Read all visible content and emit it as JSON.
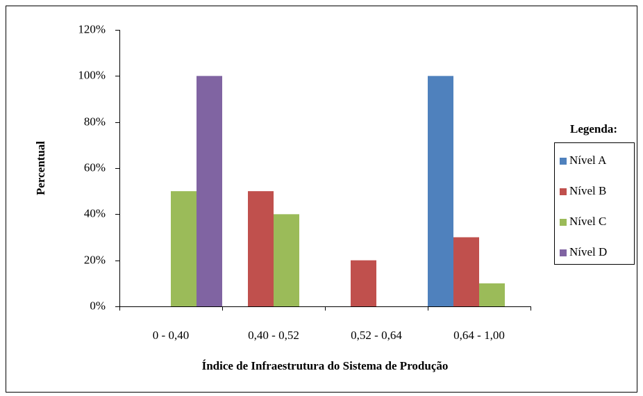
{
  "chart_data": {
    "type": "bar",
    "x_label": "Índice de Infraestrutura do Sistema de Produção",
    "y_label": "Percentual",
    "legend_title": "Legenda:",
    "legend_position": "right",
    "categories": [
      "0 - 0,40",
      "0,40 - 0,52",
      "0,52 - 0,64",
      "0,64 - 1,00"
    ],
    "series": [
      {
        "name": "Nível A",
        "color": "#4f81bd",
        "values": [
          0,
          0,
          0,
          100
        ]
      },
      {
        "name": "Nível B",
        "color": "#c0504d",
        "values": [
          0,
          50,
          20,
          30
        ]
      },
      {
        "name": "Nível C",
        "color": "#9bbb59",
        "values": [
          50,
          40,
          0,
          10
        ]
      },
      {
        "name": "Nível D",
        "color": "#8064a2",
        "values": [
          100,
          0,
          0,
          0
        ]
      }
    ],
    "ylim": [
      0,
      120
    ],
    "yticks": [
      {
        "value": 0,
        "label": "0%"
      },
      {
        "value": 20,
        "label": "20%"
      },
      {
        "value": 40,
        "label": "40%"
      },
      {
        "value": 60,
        "label": "60%"
      },
      {
        "value": 80,
        "label": "80%"
      },
      {
        "value": 100,
        "label": "100%"
      },
      {
        "value": 120,
        "label": "120%"
      }
    ]
  }
}
